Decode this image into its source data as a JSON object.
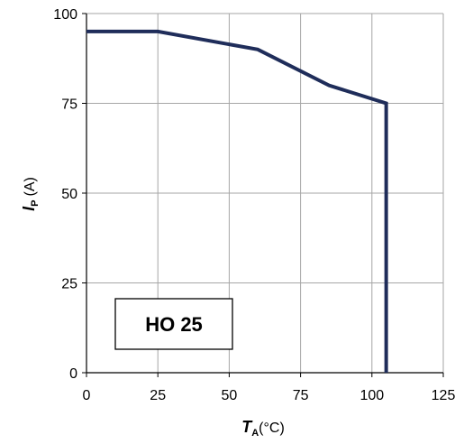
{
  "chart_data": {
    "type": "line",
    "series": [
      {
        "x": [
          0,
          25,
          60,
          85,
          105,
          105
        ],
        "y": [
          95,
          95,
          90,
          80,
          75,
          0
        ],
        "color": "#1f2d5a"
      }
    ],
    "xlim": [
      0,
      125
    ],
    "ylim": [
      0,
      100
    ],
    "xticks": [
      "0",
      "25",
      "50",
      "75",
      "100",
      "125"
    ],
    "yticks": [
      "0",
      "25",
      "50",
      "75",
      "100"
    ],
    "xlabel": {
      "symbol": "T",
      "subscript": "A",
      "unit": "(°C)"
    },
    "ylabel": {
      "symbol": "I",
      "subscript": "P",
      "unit": "(A)"
    },
    "annotation": "HO 25",
    "grid": true
  }
}
